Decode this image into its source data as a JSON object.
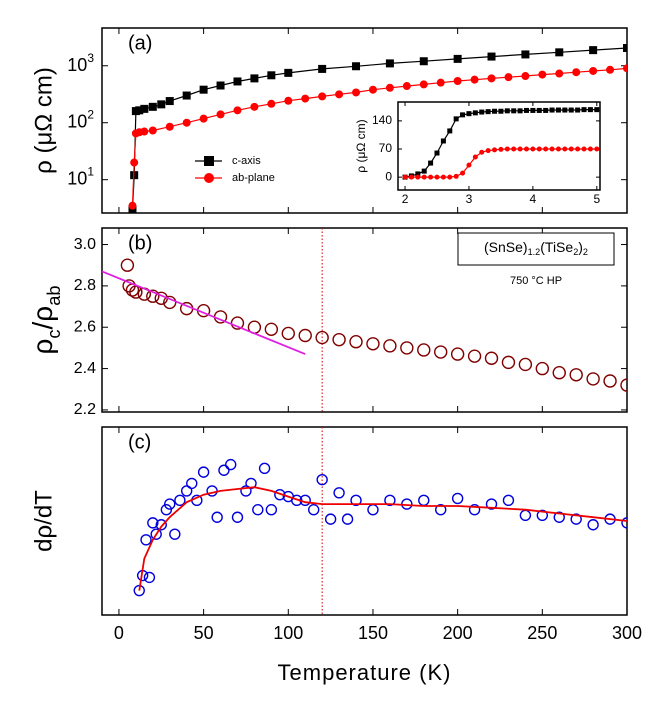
{
  "chart_data": [
    {
      "type": "line",
      "panel_label": "(a)",
      "ylabel": "ρ (μΩ cm)",
      "xlim": [
        -10,
        300
      ],
      "xticks": [
        0,
        50,
        100,
        150,
        200,
        250,
        300
      ],
      "ylim": [
        2.6,
        4600
      ],
      "log_y": true,
      "yticks": [
        {
          "value": 10,
          "label": "10",
          "exponent": "1"
        },
        {
          "value": 100,
          "label": "10",
          "exponent": "2"
        },
        {
          "value": 1000,
          "label": "10",
          "exponent": "3"
        }
      ],
      "series": [
        {
          "name": "c-axis",
          "color": "#000000",
          "marker": "square",
          "x": [
            8,
            9,
            10,
            12,
            15,
            20,
            25,
            30,
            40,
            50,
            60,
            70,
            80,
            90,
            100,
            120,
            140,
            160,
            180,
            200,
            220,
            240,
            260,
            280,
            300
          ],
          "values": [
            3,
            12,
            160,
            165,
            175,
            190,
            210,
            240,
            300,
            380,
            450,
            530,
            600,
            680,
            750,
            880,
            980,
            1100,
            1200,
            1320,
            1450,
            1580,
            1720,
            1880,
            2050
          ]
        },
        {
          "name": "ab-plane",
          "color": "#ff0000",
          "marker": "circle",
          "x": [
            8,
            9,
            10,
            12,
            15,
            20,
            30,
            40,
            50,
            60,
            70,
            80,
            90,
            100,
            110,
            120,
            130,
            140,
            150,
            160,
            170,
            180,
            190,
            200,
            210,
            220,
            230,
            240,
            250,
            260,
            270,
            280,
            290,
            300
          ],
          "values": [
            3.5,
            20,
            65,
            68,
            70,
            73,
            85,
            100,
            118,
            140,
            165,
            190,
            215,
            243,
            265,
            290,
            315,
            340,
            380,
            410,
            440,
            470,
            505,
            540,
            570,
            600,
            630,
            660,
            700,
            730,
            770,
            810,
            850,
            900
          ]
        }
      ]
    },
    {
      "type": "line",
      "inset": true,
      "ylabel": "ρ (μΩ cm)",
      "xlim": [
        1.89,
        5.05
      ],
      "xticks": [
        2,
        3,
        4,
        5
      ],
      "show_xtick_labels": true,
      "ylim": [
        -32,
        187
      ],
      "yticks": [
        0,
        70,
        140
      ],
      "series": [
        {
          "color": "#000000",
          "marker": "square",
          "x": [
            2.0,
            2.1,
            2.2,
            2.3,
            2.4,
            2.5,
            2.6,
            2.7,
            2.8,
            2.9,
            3.0,
            3.1,
            3.2,
            3.3,
            3.4,
            3.5,
            3.6,
            3.7,
            3.8,
            3.9,
            4.0,
            4.1,
            4.2,
            4.3,
            4.4,
            4.5,
            4.6,
            4.7,
            4.8,
            4.9,
            5.0
          ],
          "values": [
            0,
            3,
            8,
            15,
            35,
            60,
            90,
            115,
            145,
            155,
            158,
            160,
            162,
            163,
            164,
            164,
            165,
            165,
            165,
            166,
            166,
            166,
            166,
            167,
            167,
            167,
            167,
            167,
            168,
            168,
            168
          ]
        },
        {
          "color": "#ff0000",
          "marker": "circle",
          "x": [
            2.0,
            2.1,
            2.2,
            2.3,
            2.4,
            2.5,
            2.6,
            2.7,
            2.8,
            2.9,
            3.0,
            3.1,
            3.2,
            3.3,
            3.4,
            3.5,
            3.6,
            3.7,
            3.8,
            3.9,
            4.0,
            4.1,
            4.2,
            4.3,
            4.4,
            4.5,
            4.6,
            4.7,
            4.8,
            4.9,
            5.0
          ],
          "values": [
            0,
            0,
            0,
            0,
            0,
            0,
            0,
            0,
            2,
            10,
            30,
            50,
            62,
            66,
            68,
            69,
            70,
            70,
            70,
            70,
            70,
            70,
            70,
            70,
            70,
            70,
            70,
            70,
            70,
            70,
            70
          ]
        }
      ]
    },
    {
      "type": "scatter",
      "panel_label": "(b)",
      "ylabel_parts": [
        {
          "text": "ρ"
        },
        {
          "text": "c",
          "sub": true
        },
        {
          "text": "/ρ"
        },
        {
          "text": "ab",
          "sub": true
        }
      ],
      "xlim": [
        -10,
        300
      ],
      "xticks": [
        0,
        50,
        100,
        150,
        200,
        250,
        300
      ],
      "ylim": [
        2.19,
        3.08
      ],
      "yticks": [
        {
          "value": 2.2,
          "label": "2.2"
        },
        {
          "value": 2.4,
          "label": "2.4"
        },
        {
          "value": 2.6,
          "label": "2.6"
        },
        {
          "value": 2.8,
          "label": "2.8"
        },
        {
          "value": 3.0,
          "label": "3.0"
        }
      ],
      "annotation_parts": [
        {
          "text": "(SnSe)"
        },
        {
          "text": "1.2",
          "sub": true
        },
        {
          "text": "(TiSe"
        },
        {
          "text": "2",
          "sub": true
        },
        {
          "text": ")"
        },
        {
          "text": "2",
          "sub": true
        }
      ],
      "annotation_note": "750 °C HP",
      "vline": {
        "x": 120,
        "color": "#cc0000"
      },
      "series": [
        {
          "color": "#800000",
          "marker": "open-circle",
          "x": [
            5,
            6,
            8,
            10,
            15,
            20,
            25,
            30,
            40,
            50,
            60,
            70,
            80,
            90,
            100,
            110,
            120,
            130,
            140,
            150,
            160,
            170,
            180,
            190,
            200,
            210,
            220,
            230,
            240,
            250,
            260,
            270,
            280,
            290,
            300
          ],
          "values": [
            2.9,
            2.8,
            2.78,
            2.77,
            2.76,
            2.75,
            2.74,
            2.72,
            2.69,
            2.68,
            2.65,
            2.62,
            2.6,
            2.59,
            2.57,
            2.56,
            2.55,
            2.54,
            2.53,
            2.52,
            2.51,
            2.5,
            2.49,
            2.48,
            2.47,
            2.46,
            2.45,
            2.43,
            2.42,
            2.4,
            2.38,
            2.37,
            2.35,
            2.34,
            2.32
          ]
        },
        {
          "color": "#e020e0",
          "marker": "none",
          "x": [
            -10,
            110
          ],
          "values": [
            2.87,
            2.47
          ]
        }
      ]
    },
    {
      "type": "scatter",
      "panel_label": "(c)",
      "ylabel": "dρ/dT",
      "xlabel": "Temperature (K)",
      "show_xtick_labels": true,
      "xlim": [
        -10,
        300
      ],
      "xticks": [
        0,
        50,
        100,
        150,
        200,
        250,
        300
      ],
      "ylim": [
        0,
        1
      ],
      "vline": {
        "x": 120,
        "color": "#cc0000"
      },
      "series": [
        {
          "color": "#0000dd",
          "marker": "open-circle",
          "x": [
            12,
            14,
            16,
            18,
            20,
            22,
            25,
            28,
            30,
            33,
            36,
            40,
            43,
            46,
            50,
            55,
            58,
            62,
            66,
            70,
            75,
            78,
            82,
            86,
            90,
            95,
            100,
            105,
            110,
            115,
            120,
            125,
            130,
            135,
            140,
            150,
            160,
            170,
            180,
            190,
            200,
            210,
            220,
            230,
            240,
            250,
            260,
            270,
            280,
            290,
            300
          ],
          "values": [
            0.13,
            0.21,
            0.4,
            0.2,
            0.49,
            0.43,
            0.48,
            0.56,
            0.59,
            0.43,
            0.61,
            0.66,
            0.7,
            0.61,
            0.76,
            0.66,
            0.52,
            0.77,
            0.8,
            0.52,
            0.66,
            0.7,
            0.56,
            0.78,
            0.56,
            0.64,
            0.63,
            0.61,
            0.61,
            0.56,
            0.72,
            0.51,
            0.65,
            0.51,
            0.61,
            0.56,
            0.61,
            0.59,
            0.61,
            0.56,
            0.62,
            0.56,
            0.59,
            0.61,
            0.53,
            0.53,
            0.52,
            0.51,
            0.48,
            0.51,
            0.49
          ]
        },
        {
          "color": "#ee0000",
          "marker": "none",
          "x": [
            12,
            15,
            20,
            25,
            30,
            40,
            50,
            60,
            70,
            80,
            90,
            100,
            110,
            120,
            140,
            160,
            180,
            200,
            220,
            240,
            260,
            280,
            300
          ],
          "values": [
            0.13,
            0.3,
            0.4,
            0.47,
            0.52,
            0.6,
            0.64,
            0.66,
            0.67,
            0.68,
            0.66,
            0.63,
            0.6,
            0.59,
            0.59,
            0.59,
            0.58,
            0.58,
            0.57,
            0.56,
            0.54,
            0.52,
            0.5
          ]
        }
      ]
    }
  ]
}
